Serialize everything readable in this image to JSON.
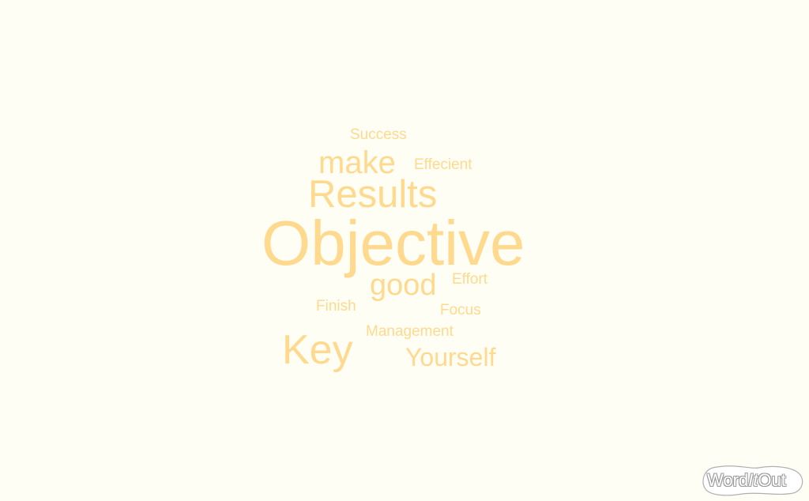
{
  "colors": {
    "background": "#fffef5",
    "word": "#ffd98e",
    "logo_outline": "#9a9a9a"
  },
  "cloud": {
    "words": {
      "success": "Success",
      "make": "make",
      "effecient": "Effecient",
      "results": "Results",
      "objective": "Objective",
      "good": "good",
      "effort": "Effort",
      "finish": "Finish",
      "focus": "Focus",
      "management": "Management",
      "key": "Key",
      "yourself": "Yourself"
    }
  },
  "logo": {
    "part1": "Word",
    "part2": "It",
    "part3": "Out"
  }
}
